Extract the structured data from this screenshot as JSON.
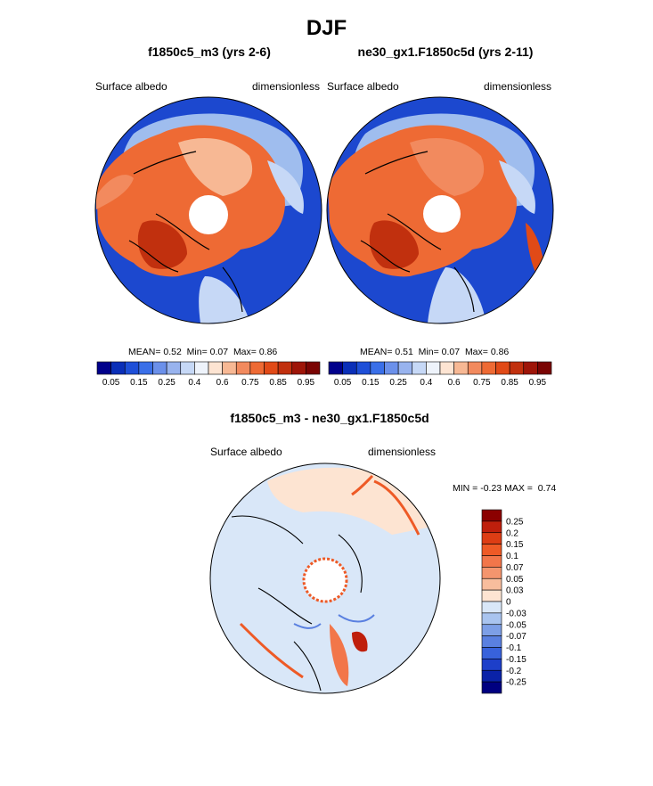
{
  "figure": {
    "title": "DJF",
    "background": "#ffffff"
  },
  "panels": [
    {
      "title": "f1850c5_m3 (yrs 2-6)",
      "left_label": "Surface albedo",
      "right_label": "dimensionless",
      "stats": {
        "mean_label": "MEAN=",
        "mean": "0.52",
        "min_label": "Min=",
        "min": "0.07",
        "max_label": "Max=",
        "max": "0.86"
      }
    },
    {
      "title": "ne30_gx1.F1850c5d (yrs 2-11)",
      "left_label": "Surface albedo",
      "right_label": "dimensionless",
      "stats": {
        "mean_label": "MEAN=",
        "mean": "0.51",
        "min_label": "Min=",
        "min": "0.07",
        "max_label": "Max=",
        "max": "0.86"
      }
    },
    {
      "title": "f1850c5_m3 - ne30_gx1.F1850c5d",
      "left_label": "Surface albedo",
      "right_label": "dimensionless",
      "stats": {
        "min_label": "MIN =",
        "min": "-0.23",
        "max_label": "MAX =",
        "max": "0.74"
      }
    }
  ],
  "chart_data": [
    {
      "type": "heatmap",
      "projection": "north-polar-stereographic",
      "title": "f1850c5_m3 (yrs 2-6)",
      "variable": "Surface albedo",
      "units": "dimensionless",
      "mean": 0.52,
      "min": 0.07,
      "max": 0.86,
      "colorbar": {
        "orientation": "horizontal",
        "levels": [
          0.05,
          0.1,
          0.15,
          0.2,
          0.25,
          0.3,
          0.4,
          0.5,
          0.6,
          0.7,
          0.75,
          0.8,
          0.85,
          0.9,
          0.95
        ],
        "tick_labels": [
          "0.05",
          "0.15",
          "0.25",
          "0.4",
          "0.6",
          "0.75",
          "0.85",
          "0.95"
        ],
        "colors": [
          "#00008b",
          "#0a2fb8",
          "#1e4fd8",
          "#3a6fe8",
          "#6b90ea",
          "#98b3ee",
          "#c6d8f6",
          "#eef3fb",
          "#fde4d2",
          "#f7b894",
          "#f28a5e",
          "#ee6a34",
          "#e14a17",
          "#c1300e",
          "#9e1508",
          "#7a0403"
        ]
      }
    },
    {
      "type": "heatmap",
      "projection": "north-polar-stereographic",
      "title": "ne30_gx1.F1850c5d (yrs 2-11)",
      "variable": "Surface albedo",
      "units": "dimensionless",
      "mean": 0.51,
      "min": 0.07,
      "max": 0.86,
      "colorbar": {
        "orientation": "horizontal",
        "levels": [
          0.05,
          0.1,
          0.15,
          0.2,
          0.25,
          0.3,
          0.4,
          0.5,
          0.6,
          0.7,
          0.75,
          0.8,
          0.85,
          0.9,
          0.95
        ],
        "tick_labels": [
          "0.05",
          "0.15",
          "0.25",
          "0.4",
          "0.6",
          "0.75",
          "0.85",
          "0.95"
        ],
        "colors": [
          "#00008b",
          "#0a2fb8",
          "#1e4fd8",
          "#3a6fe8",
          "#6b90ea",
          "#98b3ee",
          "#c6d8f6",
          "#eef3fb",
          "#fde4d2",
          "#f7b894",
          "#f28a5e",
          "#ee6a34",
          "#e14a17",
          "#c1300e",
          "#9e1508",
          "#7a0403"
        ]
      }
    },
    {
      "type": "heatmap",
      "projection": "north-polar-stereographic",
      "title": "f1850c5_m3 - ne30_gx1.F1850c5d",
      "variable": "Surface albedo",
      "units": "dimensionless",
      "min": -0.23,
      "max": 0.74,
      "colorbar": {
        "orientation": "vertical",
        "levels": [
          0.25,
          0.2,
          0.15,
          0.1,
          0.07,
          0.05,
          0.03,
          0,
          -0.03,
          -0.05,
          -0.07,
          -0.1,
          -0.15,
          -0.2,
          -0.25
        ],
        "tick_labels": [
          "0.25",
          "0.2",
          "0.15",
          "0.1",
          "0.07",
          "0.05",
          "0.03",
          "0",
          "-0.03",
          "-0.05",
          "-0.07",
          "-0.1",
          "-0.15",
          "-0.2",
          "-0.25"
        ],
        "colors": [
          "#8b0000",
          "#bf1f0c",
          "#dd3d14",
          "#ee5a26",
          "#f2764a",
          "#f4956e",
          "#f8bd9d",
          "#fde4d2",
          "#d9e7f8",
          "#a9c4ef",
          "#7d9fe6",
          "#5a80e0",
          "#3862db",
          "#1d3fc9",
          "#0a22a8",
          "#000080"
        ]
      }
    }
  ]
}
